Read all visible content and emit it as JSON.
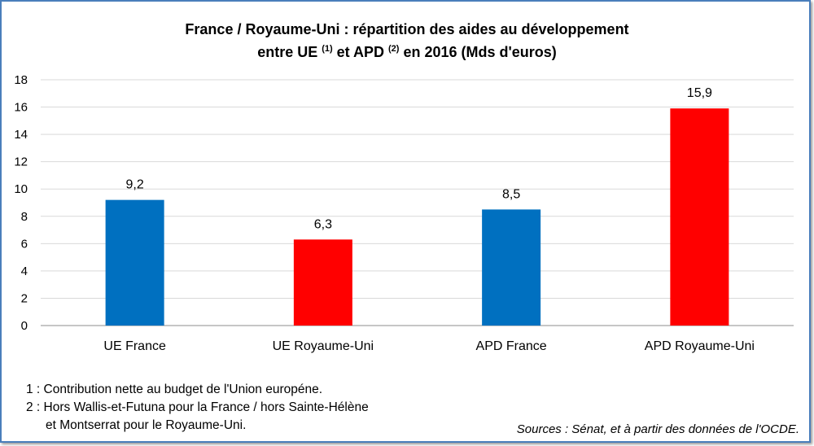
{
  "title": {
    "line1": "France / Royaume-Uni : répartition des aides au développement",
    "line2_pre": "entre UE ",
    "sup1": "(1)",
    "line2_mid": " et APD ",
    "sup2": "(2)",
    "line2_post": " en 2016 (Mds d'euros)"
  },
  "chart_data": {
    "type": "bar",
    "title": "France / Royaume-Uni : répartition des aides au développement entre UE (1) et APD (2) en 2016 (Mds d'euros)",
    "categories": [
      "UE France",
      "UE Royaume-Uni",
      "APD France",
      "APD Royaume-Uni"
    ],
    "values": [
      9.2,
      6.3,
      8.5,
      15.9
    ],
    "data_labels": [
      "9,2",
      "6,3",
      "8,5",
      "15,9"
    ],
    "colors": [
      "#0070c0",
      "#ff0000",
      "#0070c0",
      "#ff0000"
    ],
    "yticks": [
      0,
      2,
      4,
      6,
      8,
      10,
      12,
      14,
      16,
      18
    ],
    "ylim": [
      0,
      18
    ],
    "grid": true,
    "xlabel": "",
    "ylabel": ""
  },
  "notes": {
    "note1": "1 : Contribution nette au budget de l'Union européne.",
    "note2_line1": "2 : Hors Wallis-et-Futuna pour la France / hors Sainte-Hélène",
    "note2_line2": "et Montserrat pour le Royaume-Uni."
  },
  "sources": "Sources : Sénat, et à partir des données de l'OCDE."
}
